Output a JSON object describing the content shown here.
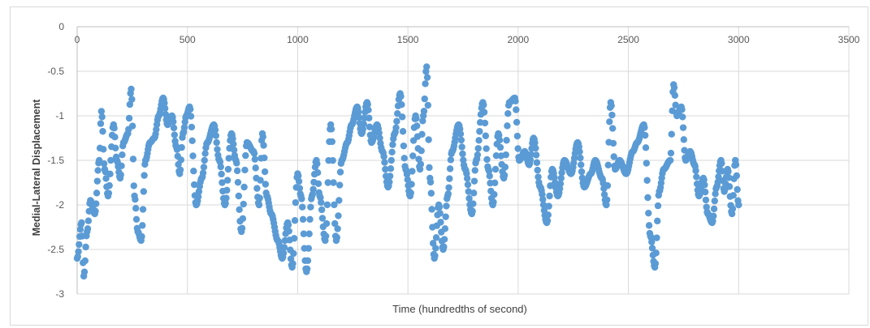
{
  "chart_data": {
    "type": "scatter",
    "title": "",
    "xlabel": "Time (hundredths of second)",
    "ylabel": "Medial-Lateral Displacement",
    "xlim": [
      0,
      3500
    ],
    "ylim": [
      -3,
      0
    ],
    "x_ticks": [
      0,
      500,
      1000,
      1500,
      2000,
      2500,
      3000,
      3500
    ],
    "y_ticks": [
      0,
      -0.5,
      -1,
      -1.5,
      -2,
      -2.5,
      -3
    ],
    "x_tick_labels": [
      "0",
      "500",
      "1000",
      "1500",
      "2000",
      "2500",
      "3000",
      "3500"
    ],
    "y_tick_labels": [
      "0",
      "-0.5",
      "-1",
      "-1.5",
      "-2",
      "-2.5",
      "-3"
    ],
    "x_axis_position": "top",
    "grid": true,
    "legend": "none",
    "marker_color": "#5b9bd5",
    "series": [
      {
        "x": [
          0,
          20,
          30,
          45,
          60,
          80,
          100,
          110,
          125,
          140,
          165,
          180,
          195,
          210,
          230,
          245,
          260,
          275,
          290,
          310,
          330,
          350,
          370,
          390,
          410,
          430,
          450,
          465,
          480,
          495,
          510,
          540,
          565,
          590,
          620,
          645,
          670,
          700,
          720,
          745,
          770,
          800,
          825,
          840,
          860,
          880,
          910,
          930,
          955,
          975,
          1000,
          1015,
          1040,
          1065,
          1085,
          1100,
          1125,
          1150,
          1175,
          1200,
          1225,
          1245,
          1270,
          1290,
          1315,
          1335,
          1360,
          1385,
          1410,
          1440,
          1465,
          1490,
          1510,
          1535,
          1555,
          1570,
          1585,
          1600,
          1620,
          1640,
          1660,
          1680,
          1700,
          1730,
          1760,
          1790,
          1810,
          1840,
          1865,
          1885,
          1910,
          1935,
          1960,
          1985,
          2005,
          2030,
          2050,
          2070,
          2100,
          2130,
          2155,
          2180,
          2210,
          2240,
          2270,
          2300,
          2330,
          2350,
          2380,
          2400,
          2420,
          2440,
          2460,
          2490,
          2520,
          2540,
          2570,
          2600,
          2620,
          2640,
          2660,
          2690,
          2705,
          2720,
          2740,
          2760,
          2780,
          2800,
          2820,
          2840,
          2860,
          2880,
          2900,
          2920,
          2935,
          2950,
          2970,
          2985,
          3000
        ],
        "y": [
          -2.6,
          -2.2,
          -2.8,
          -2.3,
          -1.95,
          -2.1,
          -1.5,
          -0.95,
          -1.6,
          -1.9,
          -1.1,
          -1.5,
          -1.7,
          -1.3,
          -1.2,
          -0.7,
          -1.9,
          -2.3,
          -2.4,
          -1.5,
          -1.3,
          -1.25,
          -1.0,
          -0.8,
          -1.1,
          -1.0,
          -1.35,
          -1.65,
          -1.2,
          -1.0,
          -0.9,
          -2.0,
          -1.7,
          -1.3,
          -1.1,
          -1.5,
          -2.0,
          -1.2,
          -1.5,
          -2.3,
          -1.3,
          -1.4,
          -2.0,
          -1.2,
          -1.9,
          -2.1,
          -2.4,
          -2.6,
          -2.2,
          -2.7,
          -1.65,
          -1.9,
          -2.75,
          -1.9,
          -1.5,
          -1.9,
          -2.4,
          -1.1,
          -2.4,
          -1.5,
          -1.3,
          -1.1,
          -0.9,
          -1.2,
          -0.85,
          -1.3,
          -1.1,
          -1.4,
          -1.8,
          -1.2,
          -0.75,
          -1.6,
          -1.9,
          -1.0,
          -1.6,
          -1.0,
          -0.45,
          -1.7,
          -2.6,
          -2.0,
          -2.5,
          -1.9,
          -1.4,
          -1.1,
          -1.6,
          -2.1,
          -1.5,
          -0.85,
          -1.6,
          -2.0,
          -1.2,
          -1.7,
          -0.85,
          -0.8,
          -1.5,
          -1.4,
          -1.55,
          -1.25,
          -1.8,
          -2.2,
          -1.6,
          -1.9,
          -1.5,
          -1.65,
          -1.3,
          -1.8,
          -1.65,
          -1.5,
          -1.7,
          -2.0,
          -0.85,
          -1.6,
          -1.5,
          -1.65,
          -1.4,
          -1.3,
          -1.1,
          -2.35,
          -2.7,
          -1.85,
          -1.6,
          -1.5,
          -0.65,
          -1.0,
          -0.9,
          -1.5,
          -1.4,
          -1.55,
          -1.9,
          -1.7,
          -2.1,
          -2.2,
          -1.8,
          -1.5,
          -1.85,
          -1.6,
          -2.1,
          -1.5,
          -2.0
        ]
      }
    ]
  }
}
